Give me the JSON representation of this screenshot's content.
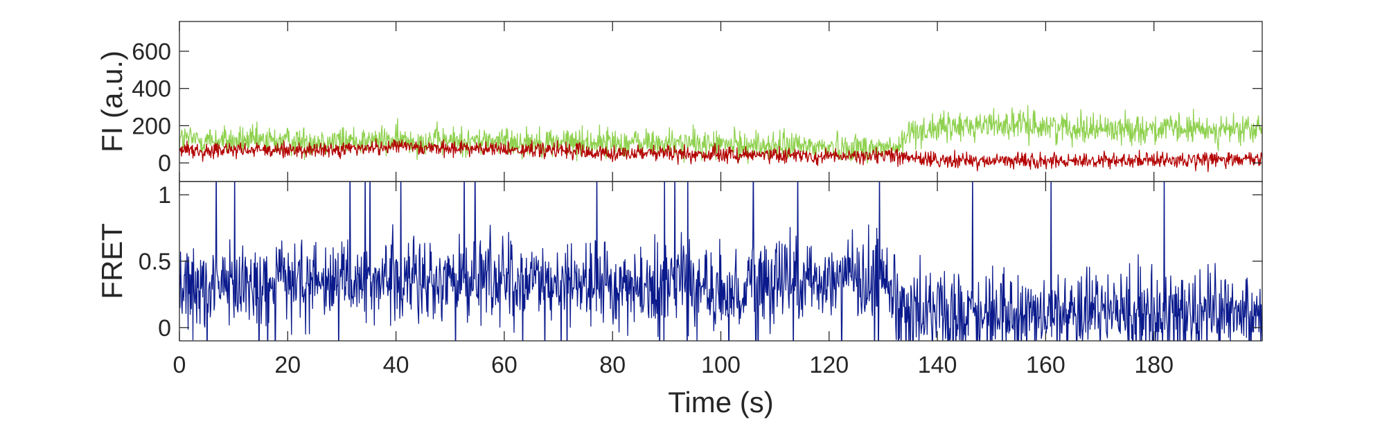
{
  "chart_data": [
    {
      "type": "line",
      "ylabel": "FI (a.u.)",
      "ylim": [
        -100,
        760
      ],
      "yticks": [
        0,
        200,
        400,
        600
      ],
      "xlim": [
        0,
        200
      ],
      "grid": false,
      "series": [
        {
          "color": "#8fd14f",
          "description": "donor intensity trace (green), noisy fluctuation",
          "sample_interval_s": 0.1,
          "baseline": [
            [
              0,
              130
            ],
            [
              10,
              115
            ],
            [
              40,
              120
            ],
            [
              80,
              110
            ],
            [
              120,
              85
            ],
            [
              133,
              80
            ],
            [
              135,
              170
            ],
            [
              150,
              210
            ],
            [
              170,
              185
            ],
            [
              200,
              175
            ]
          ],
          "noise_amplitude": 55
        },
        {
          "color": "#b30000",
          "description": "acceptor intensity trace (red), noisy fluctuation",
          "sample_interval_s": 0.1,
          "baseline": [
            [
              0,
              70
            ],
            [
              20,
              65
            ],
            [
              40,
              85
            ],
            [
              50,
              80
            ],
            [
              80,
              55
            ],
            [
              110,
              40
            ],
            [
              133,
              35
            ],
            [
              135,
              20
            ],
            [
              150,
              10
            ],
            [
              170,
              15
            ],
            [
              200,
              20
            ]
          ],
          "noise_amplitude": 30
        }
      ]
    },
    {
      "type": "line",
      "ylabel": "FRET",
      "xlabel": "Time (s)",
      "ylim": [
        -0.1,
        1.1
      ],
      "yticks": [
        0,
        0.5,
        1
      ],
      "yticklabels": [
        "0",
        "0.5",
        "1"
      ],
      "xlim": [
        0,
        200
      ],
      "xticks": [
        0,
        20,
        40,
        60,
        80,
        100,
        120,
        140,
        160,
        180
      ],
      "grid": false,
      "series": [
        {
          "color": "#0a1a8c",
          "description": "FRET efficiency trace (blue), noisy with frequent excursions to the top and bottom of the axis",
          "sample_interval_s": 0.1,
          "baseline": [
            [
              0,
              0.32
            ],
            [
              30,
              0.36
            ],
            [
              60,
              0.34
            ],
            [
              100,
              0.3
            ],
            [
              130,
              0.38
            ],
            [
              134,
              0.12
            ],
            [
              150,
              0.1
            ],
            [
              180,
              0.12
            ],
            [
              200,
              0.12
            ]
          ],
          "noise_amplitude": 0.22
        }
      ]
    }
  ]
}
